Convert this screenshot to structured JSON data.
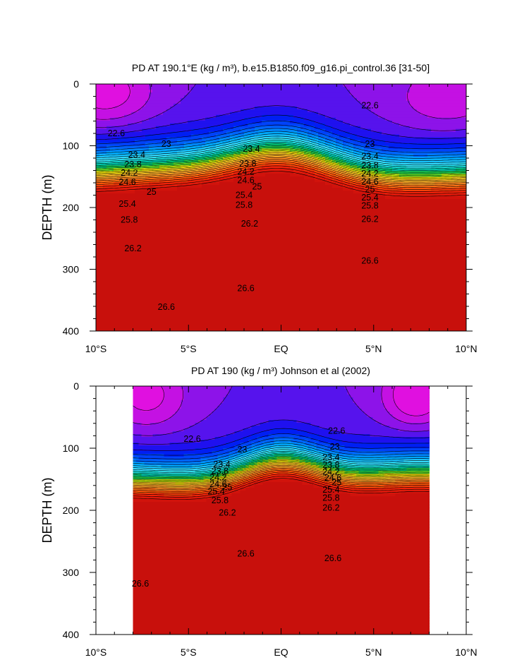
{
  "chart_data": [
    {
      "type": "contour",
      "title": "PD AT 190.1°E (kg / m³), b.e15.B1850.f09_g16.pi_control.36 [31-50]",
      "ylabel": "DEPTH (m)",
      "xlabel": "",
      "x_ticks": [
        "10°S",
        "5°S",
        "EQ",
        "5°N",
        "10°N"
      ],
      "y_ticks": [
        "0",
        "100",
        "200",
        "300",
        "400"
      ],
      "xlim": [
        -10,
        10
      ],
      "ylim": [
        400,
        0
      ],
      "data_x_range": [
        -10,
        10
      ],
      "contour_interval": 0.2,
      "levels": [
        21.2,
        21.4,
        21.6,
        21.8,
        22.0,
        22.2,
        22.4,
        22.6,
        22.8,
        23.0,
        23.2,
        23.4,
        23.6,
        23.8,
        24.0,
        24.2,
        24.4,
        24.6,
        24.8,
        25.0,
        25.2,
        25.4,
        25.6,
        25.8,
        26.0,
        26.2,
        26.4,
        26.6,
        26.8
      ],
      "labels": [
        {
          "text": "22.6",
          "x": -8.9,
          "y": 80
        },
        {
          "text": "22.6",
          "x": 4.8,
          "y": 35
        },
        {
          "text": "23",
          "x": -6.2,
          "y": 97
        },
        {
          "text": "23",
          "x": 4.8,
          "y": 97
        },
        {
          "text": "23.4",
          "x": -7.8,
          "y": 115
        },
        {
          "text": "23.4",
          "x": -1.6,
          "y": 105
        },
        {
          "text": "23.4",
          "x": 4.8,
          "y": 117
        },
        {
          "text": "23.8",
          "x": -8.0,
          "y": 130
        },
        {
          "text": "23.8",
          "x": -1.8,
          "y": 129
        },
        {
          "text": "23.8",
          "x": 4.8,
          "y": 132
        },
        {
          "text": "24.2",
          "x": -8.2,
          "y": 144
        },
        {
          "text": "24.2",
          "x": -1.9,
          "y": 142
        },
        {
          "text": "24.2",
          "x": 4.8,
          "y": 145
        },
        {
          "text": "24.6",
          "x": -8.3,
          "y": 159
        },
        {
          "text": "24.6",
          "x": -1.9,
          "y": 156
        },
        {
          "text": "24.6",
          "x": 4.8,
          "y": 158
        },
        {
          "text": "25",
          "x": -7.0,
          "y": 175
        },
        {
          "text": "25",
          "x": -1.3,
          "y": 166
        },
        {
          "text": "25",
          "x": 4.8,
          "y": 171
        },
        {
          "text": "25.4",
          "x": -8.3,
          "y": 194
        },
        {
          "text": "25.4",
          "x": -2.0,
          "y": 180
        },
        {
          "text": "25.4",
          "x": 4.8,
          "y": 184
        },
        {
          "text": "25.8",
          "x": -8.2,
          "y": 220
        },
        {
          "text": "25.8",
          "x": -2.0,
          "y": 196
        },
        {
          "text": "25.8",
          "x": 4.8,
          "y": 197
        },
        {
          "text": "26.2",
          "x": -1.7,
          "y": 226
        },
        {
          "text": "26.2",
          "x": 4.8,
          "y": 219
        },
        {
          "text": "26.2",
          "x": -8.0,
          "y": 266
        },
        {
          "text": "26.6",
          "x": 4.8,
          "y": 286
        },
        {
          "text": "26.6",
          "x": -1.9,
          "y": 331
        },
        {
          "text": "26.6",
          "x": -6.2,
          "y": 361
        }
      ]
    },
    {
      "type": "contour",
      "title": "PD AT 190 (kg / m³) Johnson et al (2002)",
      "ylabel": "DEPTH (m)",
      "xlabel": "",
      "x_ticks": [
        "10°S",
        "5°S",
        "EQ",
        "5°N",
        "10°N"
      ],
      "y_ticks": [
        "0",
        "100",
        "200",
        "300",
        "400"
      ],
      "xlim": [
        -10,
        10
      ],
      "ylim": [
        400,
        0
      ],
      "data_x_range": [
        -8,
        8
      ],
      "contour_interval": 0.2,
      "levels": [
        21.2,
        21.4,
        21.6,
        21.8,
        22.0,
        22.2,
        22.4,
        22.6,
        22.8,
        23.0,
        23.2,
        23.4,
        23.6,
        23.8,
        24.0,
        24.2,
        24.4,
        24.6,
        24.8,
        25.0,
        25.2,
        25.4,
        25.6,
        25.8,
        26.0,
        26.2,
        26.4,
        26.6,
        26.8
      ],
      "labels": [
        {
          "text": "22.6",
          "x": 3.0,
          "y": 72
        },
        {
          "text": "22.6",
          "x": -4.8,
          "y": 85
        },
        {
          "text": "23",
          "x": -2.1,
          "y": 102
        },
        {
          "text": "23",
          "x": 2.9,
          "y": 98
        },
        {
          "text": "23.4",
          "x": -3.2,
          "y": 126
        },
        {
          "text": "23.4",
          "x": 2.7,
          "y": 115
        },
        {
          "text": "23.8",
          "x": -3.3,
          "y": 137
        },
        {
          "text": "23.8",
          "x": 2.7,
          "y": 127
        },
        {
          "text": "24.2",
          "x": -3.4,
          "y": 147
        },
        {
          "text": "24.2",
          "x": 2.7,
          "y": 138
        },
        {
          "text": "24.6",
          "x": -3.4,
          "y": 158
        },
        {
          "text": "24.6",
          "x": 2.8,
          "y": 148
        },
        {
          "text": "25",
          "x": -2.9,
          "y": 163
        },
        {
          "text": "25",
          "x": 3.0,
          "y": 155
        },
        {
          "text": "25.4",
          "x": -3.5,
          "y": 170
        },
        {
          "text": "25.4",
          "x": 2.7,
          "y": 167
        },
        {
          "text": "25.8",
          "x": -3.3,
          "y": 184
        },
        {
          "text": "25.8",
          "x": 2.7,
          "y": 180
        },
        {
          "text": "26.2",
          "x": -2.9,
          "y": 204
        },
        {
          "text": "26.2",
          "x": 2.7,
          "y": 196
        },
        {
          "text": "26.6",
          "x": -1.9,
          "y": 270
        },
        {
          "text": "26.6",
          "x": 2.8,
          "y": 277
        },
        {
          "text": "26.6",
          "x": -7.6,
          "y": 318
        }
      ]
    }
  ]
}
